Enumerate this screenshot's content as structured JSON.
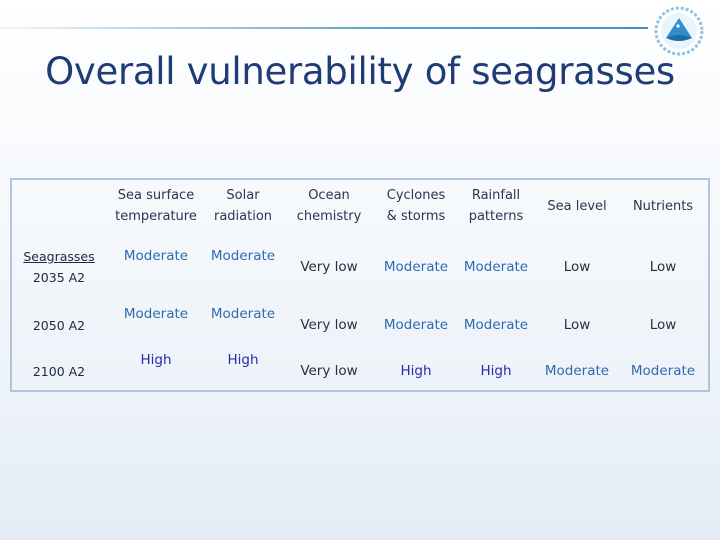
{
  "title": "Overall vulnerability of seagrasses",
  "columns": [
    {
      "line1": "Sea surface",
      "line2": "temperature"
    },
    {
      "line1": "Solar",
      "line2": "radiation"
    },
    {
      "line1": "Ocean",
      "line2": "chemistry"
    },
    {
      "line1": "Cyclones",
      "line2": "& storms"
    },
    {
      "line1": "Rainfall",
      "line2": "patterns"
    },
    {
      "line1": "Sea level",
      "line2": ""
    },
    {
      "line1": "Nutrients",
      "line2": ""
    }
  ],
  "rows": [
    {
      "label_line1": "Seagrasses",
      "label_line2": "2035 A2",
      "values": [
        "Moderate",
        "Moderate",
        "Very low",
        "Moderate",
        "Moderate",
        "Low",
        "Low"
      ]
    },
    {
      "label_line1": "2050 A2",
      "label_line2": "",
      "values": [
        "Moderate",
        "Moderate",
        "Very low",
        "Moderate",
        "Moderate",
        "Low",
        "Low"
      ]
    },
    {
      "label_line1": "2100 A2",
      "label_line2": "",
      "values": [
        "High",
        "High",
        "Very low",
        "High",
        "High",
        "Moderate",
        "Moderate"
      ]
    }
  ],
  "colors": {
    "title": "#1f3c74",
    "moderate": "#2d6bb0",
    "high": "#2b2aa8",
    "header_band": "#d5e3f2"
  }
}
